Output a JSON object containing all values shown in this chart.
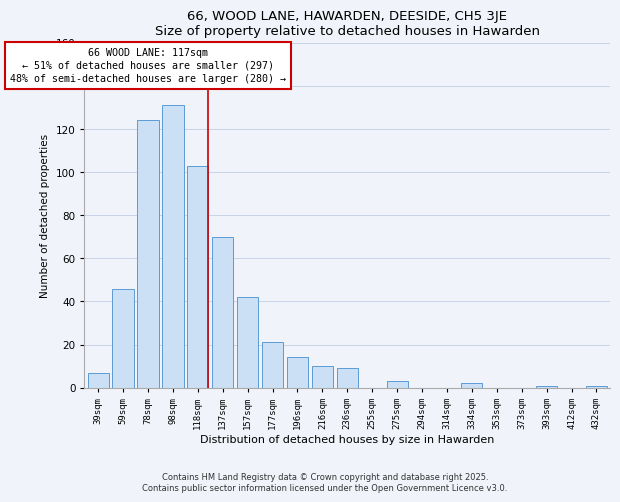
{
  "title": "66, WOOD LANE, HAWARDEN, DEESIDE, CH5 3JE",
  "subtitle": "Size of property relative to detached houses in Hawarden",
  "xlabel": "Distribution of detached houses by size in Hawarden",
  "ylabel": "Number of detached properties",
  "categories": [
    "39sqm",
    "59sqm",
    "78sqm",
    "98sqm",
    "118sqm",
    "137sqm",
    "157sqm",
    "177sqm",
    "196sqm",
    "216sqm",
    "236sqm",
    "255sqm",
    "275sqm",
    "294sqm",
    "314sqm",
    "334sqm",
    "353sqm",
    "373sqm",
    "393sqm",
    "412sqm",
    "432sqm"
  ],
  "values": [
    7,
    46,
    124,
    131,
    103,
    70,
    42,
    21,
    14,
    10,
    9,
    0,
    3,
    0,
    0,
    2,
    0,
    0,
    1,
    0,
    1
  ],
  "bar_color": "#cce0f5",
  "bar_edge_color": "#5b9bd5",
  "marker_line_color": "#cc0000",
  "annotation_line1": "66 WOOD LANE: 117sqm",
  "annotation_line2": "← 51% of detached houses are smaller (297)",
  "annotation_line3": "48% of semi-detached houses are larger (280) →",
  "ylim": [
    0,
    160
  ],
  "yticks": [
    0,
    20,
    40,
    60,
    80,
    100,
    120,
    140,
    160
  ],
  "footer_line1": "Contains HM Land Registry data © Crown copyright and database right 2025.",
  "footer_line2": "Contains public sector information licensed under the Open Government Licence v3.0.",
  "background_color": "#f0f4fa",
  "grid_color": "#c8d4e8"
}
